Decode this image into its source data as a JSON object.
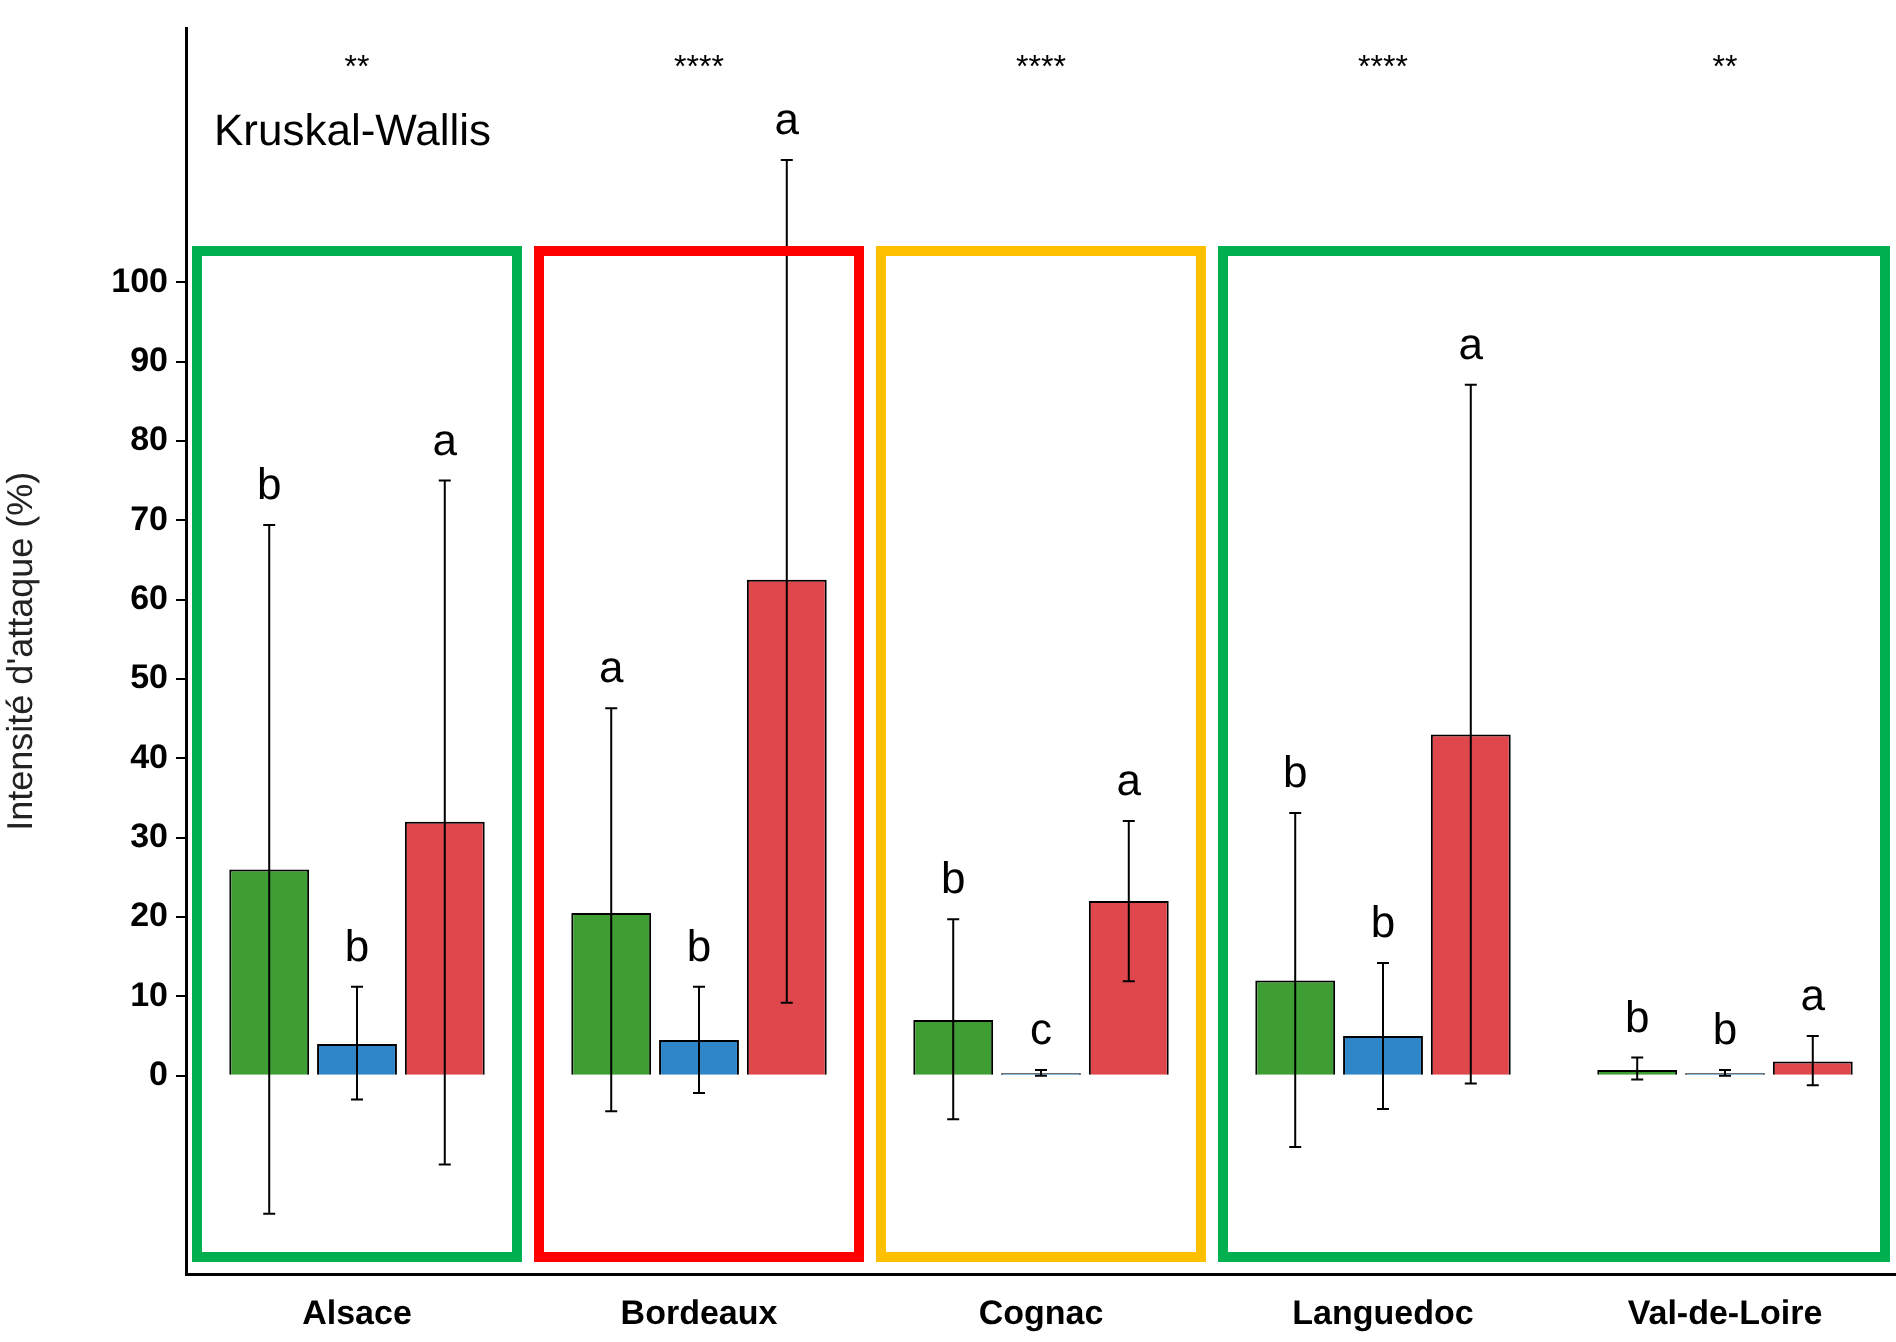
{
  "chart_data": {
    "type": "bar",
    "ylabel": "Intensité d'attaque (%)",
    "categories": [
      "Alsace",
      "Bordeaux",
      "Cognac",
      "Languedoc",
      "Val-de-Loire"
    ],
    "series": [
      {
        "color": "#3f9e33",
        "values": [
          26,
          20.5,
          7,
          12,
          0.7
        ],
        "errors": [
          [
            -17.4,
            69.4
          ],
          [
            -4.5,
            46.3
          ],
          [
            -5.5,
            19.7
          ],
          [
            -9,
            33.1
          ],
          [
            -0.5,
            2.3
          ]
        ]
      },
      {
        "color": "#2e86c8",
        "values": [
          4,
          4.5,
          0.3,
          5,
          0.3
        ],
        "errors": [
          [
            -3,
            11.2
          ],
          [
            -2.2,
            11.2
          ],
          [
            0,
            0.7
          ],
          [
            -4.2,
            14.2
          ],
          [
            0,
            0.7
          ]
        ]
      },
      {
        "color": "#e0474c",
        "values": [
          32,
          62.5,
          22,
          43,
          1.8
        ],
        "errors": [
          [
            -11.2,
            75
          ],
          [
            9.2,
            115.4
          ],
          [
            11.9,
            32.1
          ],
          [
            -1,
            87.1
          ],
          [
            -1.2,
            5
          ]
        ]
      }
    ],
    "ylim": [
      -25,
      132
    ],
    "yticks": [
      0,
      10,
      20,
      30,
      40,
      50,
      60,
      70,
      80,
      90,
      100
    ],
    "grid": false,
    "legend": false,
    "annotations": [
      "Kruskal-Wallis",
      "**",
      "****",
      "****",
      "****",
      "**",
      "b",
      "b",
      "a",
      "a",
      "b",
      "a",
      "b",
      "c",
      "a",
      "b",
      "b",
      "a",
      "b",
      "b",
      "a"
    ]
  }
}
